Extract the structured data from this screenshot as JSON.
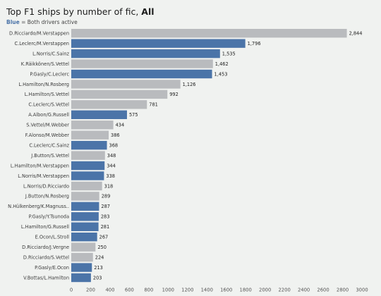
{
  "header": {
    "title_prefix": "Top F1 ships by number of fic, ",
    "title_emphasis": "All",
    "legend_key": "Blue",
    "legend_text": " = Both drivers active"
  },
  "colors": {
    "active": "#4b74a8",
    "inactive": "#b9bbbe",
    "background": "#f0f2f0"
  },
  "chart_data": {
    "type": "bar",
    "orientation": "horizontal",
    "xlabel": "Number of fic",
    "xlim": [
      0,
      3000
    ],
    "xticks": [
      0,
      200,
      400,
      600,
      800,
      1000,
      1200,
      1400,
      1600,
      1800,
      2000,
      2200,
      2400,
      2600,
      2800,
      3000
    ],
    "grid": false,
    "categories": [
      "D.Ricciardo/M.Verstappen",
      "C.Leclerc/M.Verstappen",
      "L.Norris/C.Sainz",
      "K.Räikkönen/S.Vettel",
      "P.Gasly/C.Leclerc",
      "L.Hamilton/N.Rosberg",
      "L.Hamilton/S.Vettel",
      "C.Leclerc/S.Vettel",
      "A.Albon/G.Russell",
      "S.Vettel/M.Webber",
      "F.Alonso/M.Webber",
      "C.Leclerc/C.Sainz",
      "J.Button/S.Vettel",
      "L.Hamilton/M.Verstappen",
      "L.Norris/M.Verstappen",
      "L.Norris/D.Ricciardo",
      "J.Button/N.Rosberg",
      "N.Hülkenberg/K.Magnuss..",
      "P.Gasly/Y.Tsunoda",
      "L.Hamilton/G.Russell",
      "E.Ocon/L.Stroll",
      "D.Ricciardo/J.Vergne",
      "D.Ricciardo/S.Vettel",
      "P.Gasly/E.Ocon",
      "V.Bottas/L.Hamilton"
    ],
    "values": [
      2844,
      1796,
      1535,
      1462,
      1453,
      1126,
      992,
      781,
      575,
      434,
      386,
      368,
      348,
      344,
      338,
      318,
      289,
      287,
      283,
      281,
      267,
      250,
      224,
      213,
      203
    ],
    "value_labels": [
      "2,844",
      "1,796",
      "1,535",
      "1,462",
      "1,453",
      "1,126",
      "992",
      "781",
      "575",
      "434",
      "386",
      "368",
      "348",
      "344",
      "338",
      "318",
      "289",
      "287",
      "283",
      "281",
      "267",
      "250",
      "224",
      "213",
      "203"
    ],
    "both_active": [
      false,
      true,
      true,
      false,
      true,
      false,
      false,
      false,
      true,
      false,
      false,
      true,
      false,
      true,
      true,
      false,
      false,
      true,
      true,
      true,
      true,
      false,
      false,
      true,
      true
    ]
  }
}
